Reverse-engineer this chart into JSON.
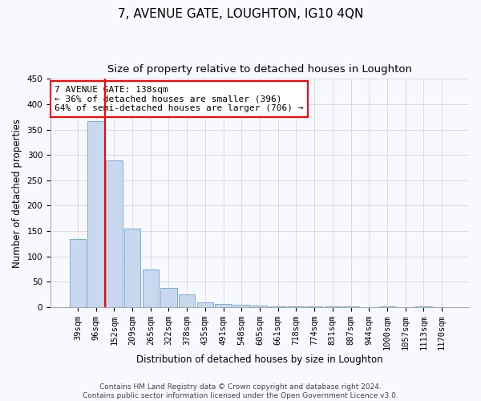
{
  "title": "7, AVENUE GATE, LOUGHTON, IG10 4QN",
  "subtitle": "Size of property relative to detached houses in Loughton",
  "xlabel": "Distribution of detached houses by size in Loughton",
  "ylabel": "Number of detached properties",
  "categories": [
    "39sqm",
    "96sqm",
    "152sqm",
    "209sqm",
    "265sqm",
    "322sqm",
    "378sqm",
    "435sqm",
    "491sqm",
    "548sqm",
    "605sqm",
    "661sqm",
    "718sqm",
    "774sqm",
    "831sqm",
    "887sqm",
    "944sqm",
    "1000sqm",
    "1057sqm",
    "1113sqm",
    "1170sqm"
  ],
  "values": [
    135,
    367,
    289,
    155,
    75,
    38,
    25,
    10,
    7,
    5,
    3,
    2,
    2,
    1,
    1,
    1,
    0,
    2,
    0,
    2,
    0
  ],
  "bar_color": "#c8d8ee",
  "bar_edge_color": "#7aafd4",
  "red_line_x": 1.5,
  "annotation_text": "7 AVENUE GATE: 138sqm\n← 36% of detached houses are smaller (396)\n64% of semi-detached houses are larger (706) →",
  "annotation_box_color": "white",
  "annotation_box_edge_color": "red",
  "red_line_color": "red",
  "ylim": [
    0,
    450
  ],
  "yticks": [
    0,
    50,
    100,
    150,
    200,
    250,
    300,
    350,
    400,
    450
  ],
  "footer_text": "Contains HM Land Registry data © Crown copyright and database right 2024.\nContains public sector information licensed under the Open Government Licence v3.0.",
  "title_fontsize": 11,
  "subtitle_fontsize": 9.5,
  "axis_label_fontsize": 8.5,
  "tick_fontsize": 7.5,
  "annotation_fontsize": 8,
  "footer_fontsize": 6.5,
  "background_color": "#f8f8ff",
  "grid_color": "#d0d0e0"
}
